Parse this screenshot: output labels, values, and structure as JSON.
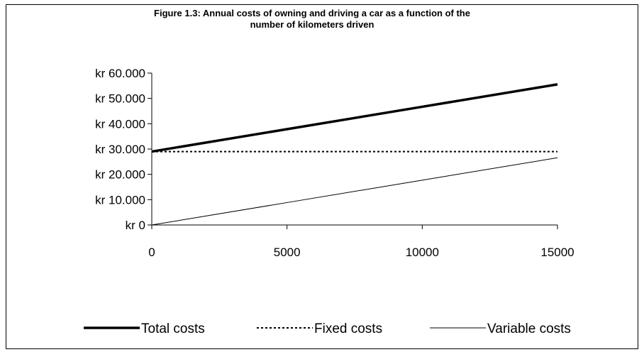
{
  "chart_data": {
    "type": "line",
    "title": "Figure 1.3: Annual costs of owning and driving a car as a function of the number of kilometers driven",
    "x": [
      0,
      5000,
      10000,
      15000
    ],
    "series": [
      {
        "name": "Total costs",
        "color": "#000000",
        "style": "solid-thick",
        "values": [
          29000,
          37850,
          46700,
          55550
        ]
      },
      {
        "name": "Fixed costs",
        "color": "#000000",
        "style": "dotted",
        "values": [
          29000,
          29000,
          29000,
          29000
        ]
      },
      {
        "name": "Variable costs",
        "color": "#000000",
        "style": "solid-thin",
        "values": [
          0,
          8850,
          17700,
          26550
        ]
      }
    ],
    "xlim": [
      0,
      15000
    ],
    "xticks": [
      0,
      5000,
      10000,
      15000
    ],
    "ylim": [
      0,
      60000
    ],
    "yticks": [
      {
        "value": 0,
        "label": "kr 0"
      },
      {
        "value": 10000,
        "label": "kr 10.000"
      },
      {
        "value": 20000,
        "label": "kr 20.000"
      },
      {
        "value": 30000,
        "label": "kr 30.000"
      },
      {
        "value": 40000,
        "label": "kr 40.000"
      },
      {
        "value": 50000,
        "label": "kr 50.000"
      },
      {
        "value": 60000,
        "label": "kr 60.000"
      }
    ],
    "grid": false,
    "legend": "bottom"
  }
}
